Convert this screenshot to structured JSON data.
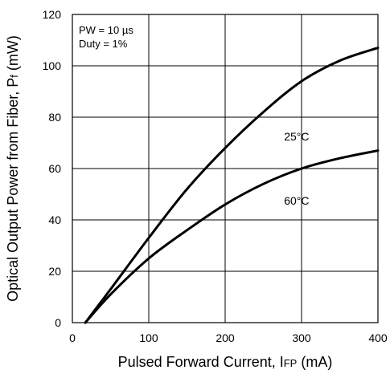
{
  "chart_data": {
    "type": "line",
    "title": "",
    "xlabel": {
      "main": "Pulsed Forward Current,  I",
      "sub": "FP",
      "unit": " (mA)"
    },
    "ylabel": {
      "main": "Optical Output Power from Fiber,  P",
      "sub": "f",
      "unit": " (mW)"
    },
    "xlim": [
      0,
      400
    ],
    "ylim": [
      0,
      120
    ],
    "xticks": [
      0,
      100,
      200,
      300,
      400
    ],
    "yticks": [
      0,
      20,
      40,
      60,
      80,
      100,
      120
    ],
    "grid": true,
    "conditions": [
      "PW = 10 µs",
      "Duty = 1%"
    ],
    "series": [
      {
        "name": "25°C",
        "x": [
          17,
          50,
          100,
          150,
          200,
          250,
          300,
          350,
          400
        ],
        "y": [
          0,
          13,
          33,
          52,
          68,
          82,
          94,
          102,
          107
        ]
      },
      {
        "name": "60°C",
        "x": [
          17,
          50,
          100,
          150,
          200,
          250,
          300,
          350,
          400
        ],
        "y": [
          0,
          11,
          25,
          36,
          46,
          54,
          60,
          64,
          67
        ]
      }
    ],
    "curve_labels": [
      {
        "series": 0,
        "text": "25°C",
        "x": 310,
        "y": 71
      },
      {
        "series": 1,
        "text": "60°C",
        "x": 310,
        "y": 46
      }
    ]
  },
  "colors": {
    "line": "#000000",
    "grid": "#000000",
    "background": "#ffffff"
  }
}
